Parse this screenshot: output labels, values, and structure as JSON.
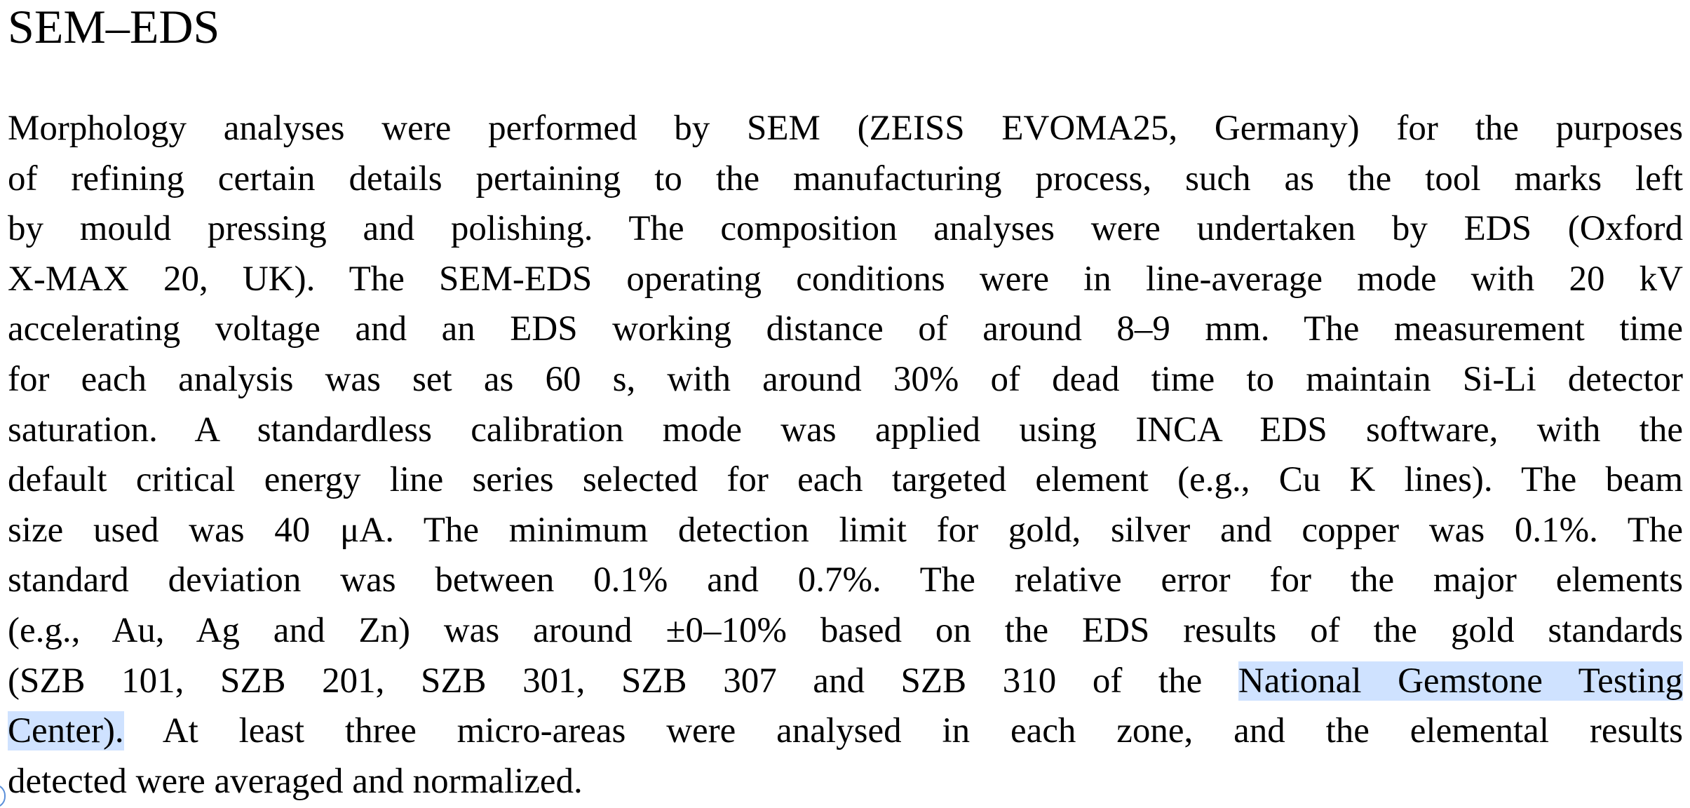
{
  "heading": "SEM–EDS",
  "paragraph": {
    "lines": [
      "Morphology analyses were performed by SEM (ZEISS EVOMA25, Germany) for the purposes",
      "of refining certain details pertaining to the manufacturing process, such as the tool marks left",
      "by mould pressing and polishing. The composition analyses were undertaken by EDS (Oxford",
      "X-MAX 20, UK). The SEM-EDS operating conditions were in line-average mode with 20 kV",
      "accelerating voltage and an EDS working distance of around 8–9 mm. The measurement time",
      "for each analysis was set as 60 s, with around 30% of dead time to maintain Si-Li detector",
      "saturation. A standardless calibration mode was applied using INCA EDS software, with the",
      "default critical energy line series selected for each targeted element (e.g., Cu K lines). The beam",
      "size used was 40 μA. The minimum detection limit for gold, silver and copper was 0.1%. The",
      "standard deviation was between 0.1% and 0.7%. The relative error for the major elements",
      "(e.g., Au, Ag and Zn) was around ±0–10% based on the EDS results of the gold standards"
    ],
    "line12_plain": "(SZB 101, SZB 201, SZB 301, SZB 307 and SZB 310 of the",
    "line12_highlighted": "National Gemstone Testing",
    "line13_highlighted": "Center).",
    "line13_plain": "At least three micro-areas were analysed in each zone, and the elemental results",
    "line14": "detected were averaged and normalized."
  },
  "colors": {
    "highlight": "#cfe2ff",
    "text": "#000000",
    "background": "#ffffff"
  }
}
